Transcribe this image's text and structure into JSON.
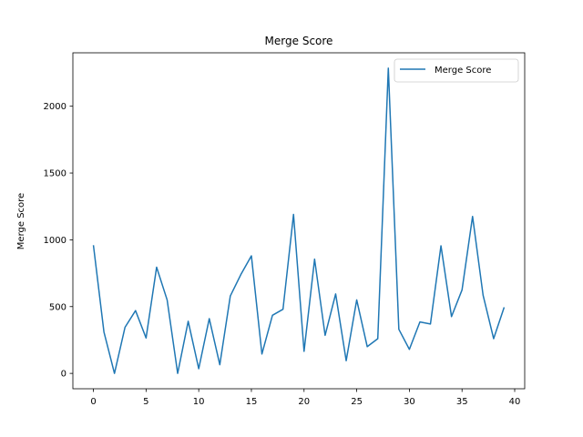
{
  "chart_data": {
    "type": "line",
    "title": "Merge Score",
    "xlabel": "",
    "ylabel": "Merge Score",
    "xlim": [
      -1.95,
      40.95
    ],
    "ylim": [
      -115,
      2400
    ],
    "xticks": [
      0,
      5,
      10,
      15,
      20,
      25,
      30,
      35,
      40
    ],
    "yticks": [
      0,
      500,
      1000,
      1500,
      2000
    ],
    "grid": false,
    "legend_position": "top-right",
    "series": [
      {
        "name": "Merge Score",
        "color": "#1f77b4",
        "x": [
          0,
          1,
          2,
          3,
          4,
          5,
          6,
          7,
          8,
          9,
          10,
          11,
          12,
          13,
          14,
          15,
          16,
          17,
          18,
          19,
          20,
          21,
          22,
          23,
          24,
          25,
          26,
          27,
          28,
          29,
          30,
          31,
          32,
          33,
          34,
          35,
          36,
          37,
          38,
          39
        ],
        "values": [
          960,
          310,
          0,
          345,
          470,
          265,
          795,
          550,
          0,
          390,
          35,
          410,
          65,
          580,
          740,
          880,
          145,
          435,
          480,
          1190,
          165,
          855,
          285,
          595,
          95,
          550,
          200,
          260,
          2285,
          330,
          180,
          385,
          370,
          955,
          425,
          625,
          1175,
          585,
          260,
          495
        ]
      }
    ]
  }
}
